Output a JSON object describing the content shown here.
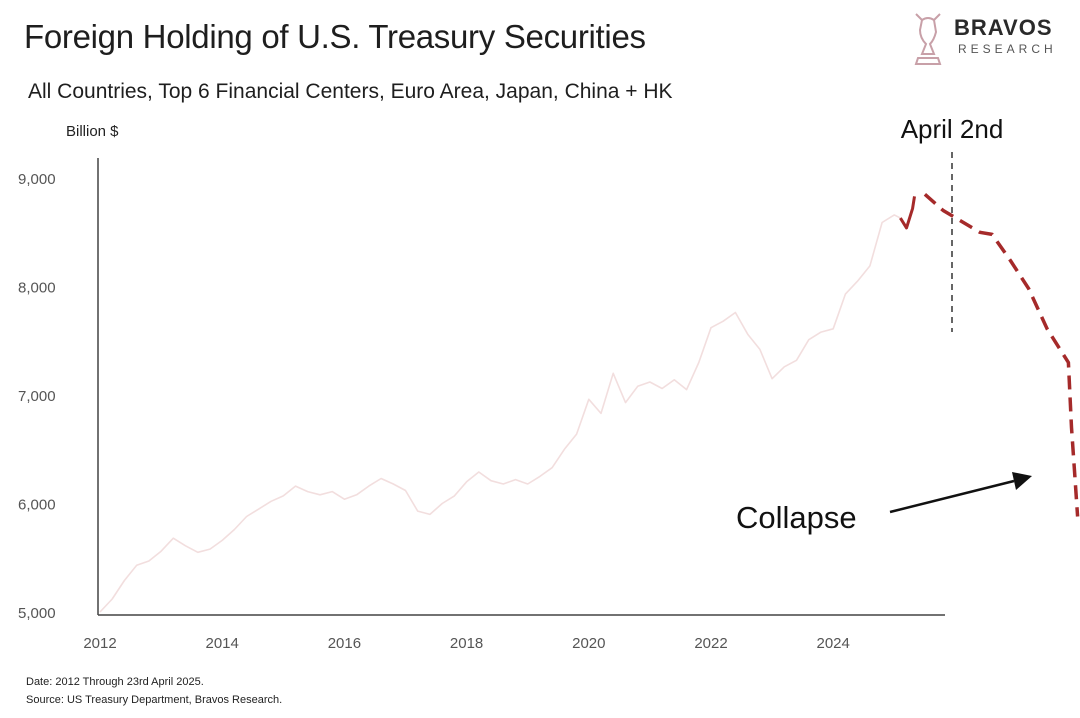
{
  "header": {
    "title": "Foreign Holding of U.S. Treasury Securities",
    "subtitle": "All Countries, Top 6 Financial Centers, Euro Area, Japan, China + HK"
  },
  "brand": {
    "name": "BRAVOS",
    "tagline": "RESEARCH",
    "icon": "bull-chess-knight-icon",
    "color": "#c8a0a8"
  },
  "footer": {
    "line1": "Date: 2012 Through 23rd April 2025.",
    "line2": "Source: US Treasury Department, Bravos Research."
  },
  "colors": {
    "historical_line": "#f2dede",
    "recent_line": "#a52a2a",
    "projection_line": "#a52a2a",
    "axis": "#555555"
  },
  "chart_data": {
    "type": "line",
    "ylabel": "Billion $",
    "xlim": [
      2012,
      2025.5
    ],
    "ylim": [
      5000,
      9000
    ],
    "x_ticks": [
      "2012",
      "2014",
      "2016",
      "2018",
      "2020",
      "2022",
      "2024"
    ],
    "y_ticks": [
      "5,000",
      "6,000",
      "7,000",
      "8,000",
      "9,000"
    ],
    "series": [
      {
        "style": "historical",
        "points": [
          [
            2012.0,
            5000
          ],
          [
            2012.2,
            5120
          ],
          [
            2012.4,
            5290
          ],
          [
            2012.6,
            5430
          ],
          [
            2012.8,
            5470
          ],
          [
            2013.0,
            5560
          ],
          [
            2013.2,
            5680
          ],
          [
            2013.4,
            5610
          ],
          [
            2013.6,
            5550
          ],
          [
            2013.8,
            5580
          ],
          [
            2014.0,
            5660
          ],
          [
            2014.2,
            5760
          ],
          [
            2014.4,
            5880
          ],
          [
            2014.6,
            5950
          ],
          [
            2014.8,
            6020
          ],
          [
            2015.0,
            6070
          ],
          [
            2015.2,
            6160
          ],
          [
            2015.4,
            6110
          ],
          [
            2015.6,
            6080
          ],
          [
            2015.8,
            6110
          ],
          [
            2016.0,
            6040
          ],
          [
            2016.2,
            6080
          ],
          [
            2016.4,
            6160
          ],
          [
            2016.6,
            6230
          ],
          [
            2016.8,
            6180
          ],
          [
            2017.0,
            6120
          ],
          [
            2017.2,
            5930
          ],
          [
            2017.4,
            5900
          ],
          [
            2017.6,
            6000
          ],
          [
            2017.8,
            6070
          ],
          [
            2018.0,
            6200
          ],
          [
            2018.2,
            6290
          ],
          [
            2018.4,
            6210
          ],
          [
            2018.6,
            6180
          ],
          [
            2018.8,
            6220
          ],
          [
            2019.0,
            6180
          ],
          [
            2019.2,
            6250
          ],
          [
            2019.4,
            6330
          ],
          [
            2019.6,
            6500
          ],
          [
            2019.8,
            6640
          ],
          [
            2020.0,
            6960
          ],
          [
            2020.2,
            6830
          ],
          [
            2020.4,
            7200
          ],
          [
            2020.6,
            6930
          ],
          [
            2020.8,
            7080
          ],
          [
            2021.0,
            7120
          ],
          [
            2021.2,
            7060
          ],
          [
            2021.4,
            7140
          ],
          [
            2021.6,
            7050
          ],
          [
            2021.8,
            7300
          ],
          [
            2022.0,
            7620
          ],
          [
            2022.2,
            7680
          ],
          [
            2022.4,
            7760
          ],
          [
            2022.6,
            7560
          ],
          [
            2022.8,
            7420
          ],
          [
            2023.0,
            7150
          ],
          [
            2023.2,
            7260
          ],
          [
            2023.4,
            7320
          ],
          [
            2023.6,
            7510
          ],
          [
            2023.8,
            7580
          ],
          [
            2024.0,
            7610
          ],
          [
            2024.2,
            7930
          ],
          [
            2024.4,
            8050
          ],
          [
            2024.6,
            8190
          ],
          [
            2024.8,
            8590
          ],
          [
            2025.0,
            8660
          ],
          [
            2025.1,
            8630
          ]
        ]
      },
      {
        "style": "recent",
        "points": [
          [
            2025.1,
            8630
          ],
          [
            2025.2,
            8540
          ],
          [
            2025.3,
            8720
          ],
          [
            2025.33,
            8830
          ]
        ]
      },
      {
        "style": "projection",
        "points": [
          [
            2025.5,
            8850
          ],
          [
            2025.8,
            8700
          ],
          [
            2026.1,
            8600
          ],
          [
            2026.4,
            8500
          ],
          [
            2026.6,
            8480
          ],
          [
            2026.9,
            8240
          ],
          [
            2027.2,
            7980
          ],
          [
            2027.5,
            7610
          ],
          [
            2027.85,
            7300
          ],
          [
            2027.9,
            6700
          ],
          [
            2027.95,
            6300
          ],
          [
            2028.0,
            5880
          ]
        ]
      }
    ],
    "annotations": {
      "event_label": "April 2nd",
      "event_x": 2025.5,
      "callout": "Collapse"
    }
  }
}
